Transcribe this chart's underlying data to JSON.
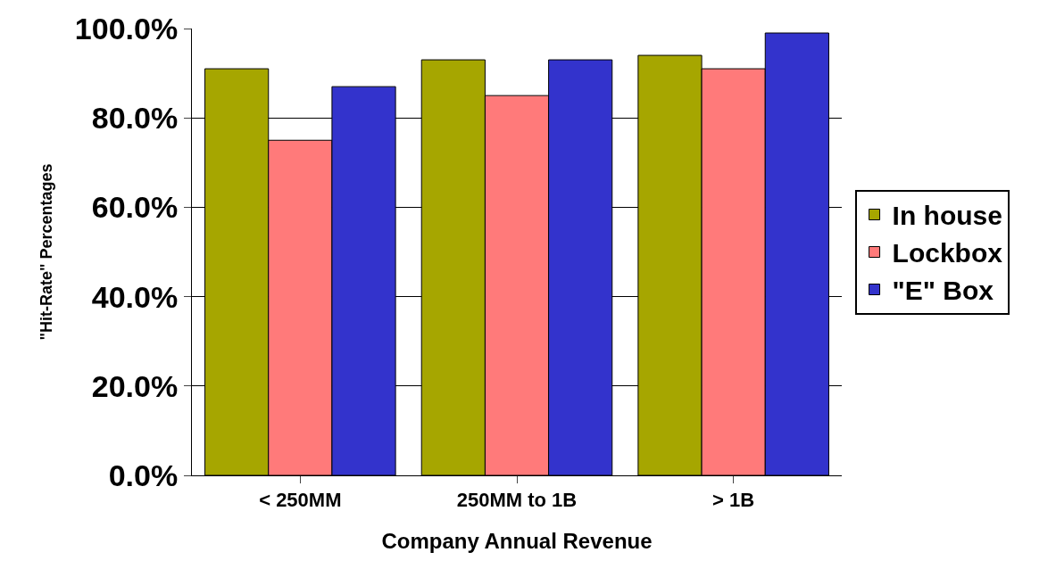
{
  "chart_data": {
    "type": "bar",
    "xlabel": "Company Annual Revenue",
    "ylabel": "\"Hit-Rate\" Percentages",
    "categories": [
      "< 250MM",
      "250MM to 1B",
      "> 1B"
    ],
    "series": [
      {
        "name": "In house",
        "color": "#a6a600",
        "values": [
          91,
          93,
          94
        ]
      },
      {
        "name": "Lockbox",
        "color": "#ff7a7a",
        "values": [
          75,
          85,
          91
        ]
      },
      {
        "name": "\"E\" Box",
        "color": "#3333cc",
        "values": [
          87,
          93,
          99
        ]
      }
    ],
    "ylim": [
      0,
      100
    ],
    "yticks": [
      {
        "value": 0,
        "label": "0.0%"
      },
      {
        "value": 20,
        "label": "20.0%"
      },
      {
        "value": 40,
        "label": "40.0%"
      },
      {
        "value": 60,
        "label": "60.0%"
      },
      {
        "value": 80,
        "label": "80.0%"
      },
      {
        "value": 100,
        "label": "100.0%"
      }
    ],
    "grid": "y",
    "legend": "right"
  }
}
